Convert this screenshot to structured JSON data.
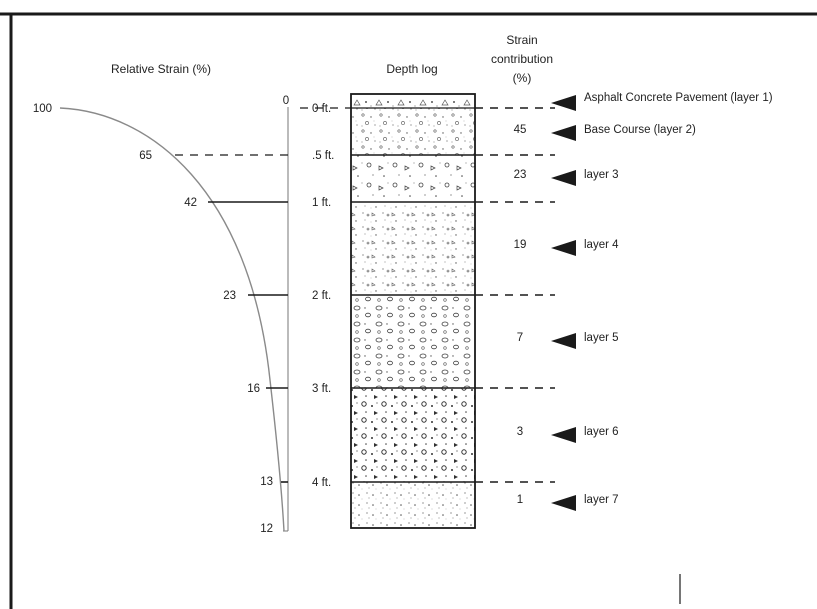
{
  "headers": {
    "relative_strain": "Relative Strain (%)",
    "depth_log": "Depth log",
    "strain_contribution": [
      "Strain",
      "contribution",
      "(%)"
    ]
  },
  "axis": {
    "zero_label": "0"
  },
  "strain_profile": [
    {
      "depth_ft": 0,
      "strain": 100,
      "label": "100"
    },
    {
      "depth_ft": 0.5,
      "strain": 65,
      "label": "65"
    },
    {
      "depth_ft": 1,
      "strain": 42,
      "label": "42"
    },
    {
      "depth_ft": 2,
      "strain": 23,
      "label": "23"
    },
    {
      "depth_ft": 3,
      "strain": 16,
      "label": "16"
    },
    {
      "depth_ft": 4,
      "strain": 13,
      "label": "13"
    },
    {
      "depth_ft": 4.5,
      "strain": 12,
      "label": "12"
    }
  ],
  "depth_labels": [
    "0 ft.",
    ".5 ft.",
    "1 ft.",
    "2 ft.",
    "3 ft.",
    "4 ft."
  ],
  "layers": [
    {
      "name": "Asphalt Concrete Pavement (layer 1)",
      "contribution": ""
    },
    {
      "name": "Base Course (layer 2)",
      "contribution": "45"
    },
    {
      "name": "layer 3",
      "contribution": "23"
    },
    {
      "name": "layer 4",
      "contribution": "19"
    },
    {
      "name": "layer 5",
      "contribution": "7"
    },
    {
      "name": "layer 6",
      "contribution": "3"
    },
    {
      "name": "layer 7",
      "contribution": "1"
    }
  ],
  "colors": {
    "frame": "#1a1a1a",
    "curve": "#8a8a8a",
    "line": "#1a1a1a",
    "text": "#222222",
    "background": "#ffffff"
  }
}
